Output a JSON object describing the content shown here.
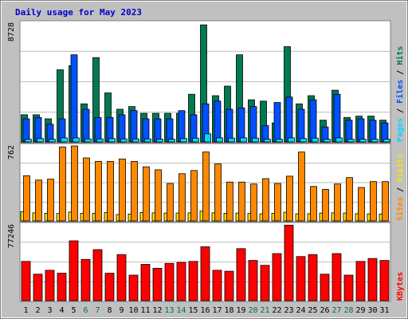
{
  "colors": {
    "background": "#c0c0c0",
    "plot_bg": "#ffffff",
    "title_text": "#0000cc",
    "hits": "#007a50",
    "files": "#0050ff",
    "pages": "#00d8ff",
    "visits": "#ffe000",
    "sites": "#ff8800",
    "kbytes": "#ff0000",
    "weekend_label": "#006f50",
    "weekday_label": "#000000"
  },
  "chart_data": [
    {
      "type": "bar",
      "title": "Daily usage for May 2023",
      "ylim": [
        0,
        8728
      ],
      "y_max_label": "8728",
      "categories": [
        "1",
        "2",
        "3",
        "4",
        "5",
        "6",
        "7",
        "8",
        "9",
        "10",
        "11",
        "12",
        "13",
        "14",
        "15",
        "16",
        "17",
        "18",
        "19",
        "20",
        "21",
        "22",
        "23",
        "24",
        "25",
        "26",
        "27",
        "28",
        "29",
        "30",
        "31"
      ],
      "weekend_days": [
        "6",
        "7",
        "13",
        "14",
        "20",
        "21",
        "27",
        "28"
      ],
      "legend": {
        "pages": "Pages",
        "files": "Files",
        "hits": "Hits",
        "sep": " / "
      },
      "series": [
        {
          "name": "Hits",
          "values": [
            2000,
            2000,
            1700,
            5300,
            5600,
            2800,
            6200,
            3600,
            2400,
            2600,
            2100,
            2100,
            2100,
            2100,
            3500,
            8600,
            3400,
            4100,
            6400,
            3100,
            3000,
            1400,
            7000,
            2800,
            3400,
            1600,
            3800,
            1800,
            1900,
            1900,
            1600
          ]
        },
        {
          "name": "Files",
          "values": [
            1700,
            1800,
            1300,
            1700,
            6400,
            2400,
            1800,
            1800,
            2000,
            2300,
            1700,
            1700,
            1700,
            2300,
            2000,
            2800,
            3000,
            2400,
            2500,
            2600,
            1200,
            2900,
            3300,
            2400,
            3100,
            1100,
            3500,
            1600,
            1700,
            1600,
            1400
          ]
        },
        {
          "name": "Pages",
          "values": [
            200,
            250,
            200,
            300,
            300,
            220,
            220,
            250,
            220,
            220,
            220,
            200,
            200,
            250,
            280,
            600,
            300,
            280,
            300,
            280,
            200,
            200,
            300,
            250,
            280,
            200,
            300,
            200,
            200,
            200,
            200
          ]
        }
      ]
    },
    {
      "type": "bar",
      "ylim": [
        0,
        762
      ],
      "y_max_label": "762",
      "categories": [
        "1",
        "2",
        "3",
        "4",
        "5",
        "6",
        "7",
        "8",
        "9",
        "10",
        "11",
        "12",
        "13",
        "14",
        "15",
        "16",
        "17",
        "18",
        "19",
        "20",
        "21",
        "22",
        "23",
        "24",
        "25",
        "26",
        "27",
        "28",
        "29",
        "30",
        "31"
      ],
      "legend": {
        "sites": "Sites",
        "visits": "Visits",
        "sep": " / "
      },
      "series": [
        {
          "name": "Visits",
          "values": [
            95,
            82,
            78,
            75,
            90,
            78,
            78,
            85,
            65,
            70,
            85,
            82,
            80,
            80,
            82,
            100,
            82,
            78,
            80,
            76,
            72,
            78,
            88,
            72,
            74,
            80,
            82,
            80,
            74,
            72,
            70
          ]
        },
        {
          "name": "Sites",
          "values": [
            460,
            415,
            425,
            752,
            762,
            640,
            605,
            605,
            630,
            605,
            550,
            520,
            380,
            480,
            512,
            700,
            580,
            395,
            395,
            375,
            430,
            380,
            455,
            700,
            350,
            320,
            375,
            440,
            340,
            400,
            400
          ]
        }
      ]
    },
    {
      "type": "bar",
      "ylim": [
        0,
        77246
      ],
      "y_max_label": "77246",
      "categories": [
        "1",
        "2",
        "3",
        "4",
        "5",
        "6",
        "7",
        "8",
        "9",
        "10",
        "11",
        "12",
        "13",
        "14",
        "15",
        "16",
        "17",
        "18",
        "19",
        "20",
        "21",
        "22",
        "23",
        "24",
        "25",
        "26",
        "27",
        "28",
        "29",
        "30",
        "31"
      ],
      "legend": {
        "kbytes": "KBytes"
      },
      "series": [
        {
          "name": "KBytes",
          "values": [
            40000,
            27000,
            31000,
            28000,
            61000,
            42000,
            52000,
            28000,
            47000,
            26000,
            37000,
            33000,
            38000,
            39000,
            40000,
            55000,
            31000,
            30000,
            53000,
            41000,
            36000,
            48000,
            77000,
            45000,
            47000,
            27000,
            48000,
            26000,
            40000,
            43000,
            41000
          ]
        }
      ]
    }
  ]
}
